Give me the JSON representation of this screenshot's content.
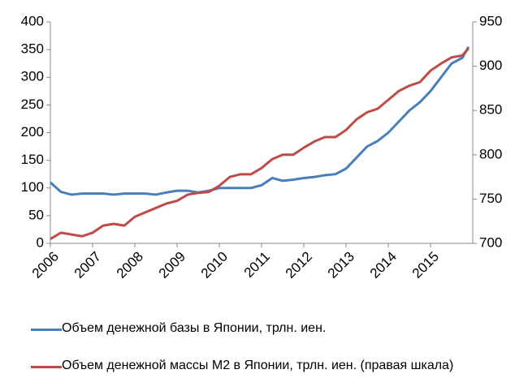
{
  "chart_data": {
    "type": "line",
    "x": [
      2006,
      2006.25,
      2006.5,
      2006.75,
      2007,
      2007.25,
      2007.5,
      2007.75,
      2008,
      2008.25,
      2008.5,
      2008.75,
      2009,
      2009.25,
      2009.5,
      2009.75,
      2010,
      2010.25,
      2010.5,
      2010.75,
      2011,
      2011.25,
      2011.5,
      2011.75,
      2012,
      2012.25,
      2012.5,
      2012.75,
      2013,
      2013.25,
      2013.5,
      2013.75,
      2014,
      2014.25,
      2014.5,
      2014.75,
      2015,
      2015.25,
      2015.5,
      2015.75,
      2015.9
    ],
    "series": [
      {
        "name": "Объем денежной базы в Японии, трлн. иен.",
        "color": "#4a7ebb",
        "values": [
          110,
          93,
          88,
          90,
          90,
          90,
          88,
          90,
          90,
          90,
          88,
          92,
          95,
          95,
          92,
          95,
          100,
          100,
          100,
          100,
          105,
          118,
          113,
          115,
          118,
          120,
          123,
          125,
          135,
          155,
          175,
          185,
          200,
          220,
          240,
          255,
          275,
          300,
          325,
          335,
          355
        ]
      },
      {
        "name": "Объем денежной массы M2 в Японии, трлн. иен. (правая шкала)",
        "color": "#be4b48",
        "axis": "y2",
        "values": [
          705,
          712,
          710,
          708,
          712,
          720,
          722,
          720,
          730,
          735,
          740,
          745,
          748,
          755,
          757,
          758,
          765,
          775,
          778,
          778,
          785,
          795,
          800,
          800,
          808,
          815,
          820,
          820,
          828,
          840,
          848,
          852,
          862,
          872,
          878,
          882,
          895,
          903,
          910,
          912,
          920
        ]
      }
    ],
    "xlim": [
      2006,
      2016
    ],
    "xticks": [
      2006,
      2007,
      2008,
      2009,
      2010,
      2011,
      2012,
      2013,
      2014,
      2015
    ],
    "ylim": [
      0,
      400
    ],
    "yticks": [
      0,
      50,
      100,
      150,
      200,
      250,
      300,
      350,
      400
    ],
    "y2lim": [
      700,
      950
    ],
    "y2ticks": [
      700,
      750,
      800,
      850,
      900,
      950
    ]
  }
}
